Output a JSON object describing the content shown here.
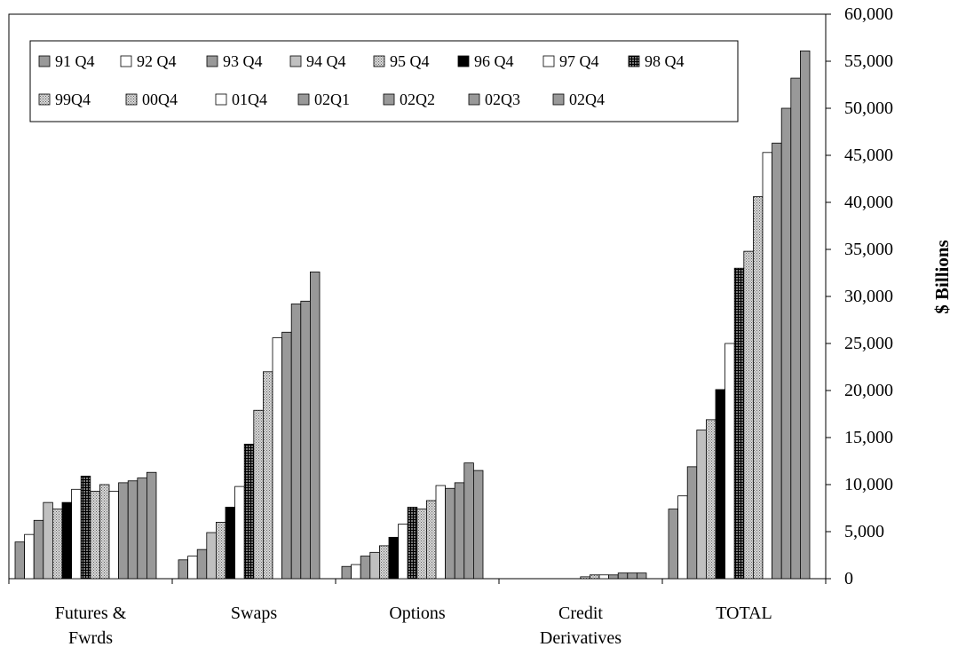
{
  "chart_data": {
    "type": "bar",
    "title": "",
    "xlabel": "",
    "ylabel": "$ Billions",
    "ylim": [
      0,
      60000
    ],
    "yticks": [
      0,
      5000,
      10000,
      15000,
      20000,
      25000,
      30000,
      35000,
      40000,
      45000,
      50000,
      55000,
      60000
    ],
    "ytick_labels": [
      "0",
      "5,000",
      "10,000",
      "15,000",
      "20,000",
      "25,000",
      "30,000",
      "35,000",
      "40,000",
      "45,000",
      "50,000",
      "55,000",
      "60,000"
    ],
    "y_axis_side": "right",
    "grid": false,
    "legend_position": "top-left",
    "categories": [
      [
        "Futures &",
        "Fwrds"
      ],
      [
        "Swaps"
      ],
      [
        "Options"
      ],
      [
        "Credit",
        "Derivatives"
      ],
      [
        "TOTAL"
      ]
    ],
    "series": [
      {
        "name": "91 Q4",
        "fill": "#999999",
        "pattern": "solid",
        "values": [
          3900,
          2000,
          1300,
          0,
          7400
        ]
      },
      {
        "name": "92 Q4",
        "fill": "#ffffff",
        "pattern": "solid",
        "values": [
          4700,
          2400,
          1500,
          0,
          8800
        ]
      },
      {
        "name": "93 Q4",
        "fill": "#999999",
        "pattern": "solid",
        "values": [
          6200,
          3100,
          2400,
          0,
          11900
        ]
      },
      {
        "name": "94 Q4",
        "fill": "#c0c0c0",
        "pattern": "solid",
        "values": [
          8100,
          4900,
          2800,
          0,
          15800
        ]
      },
      {
        "name": "95 Q4",
        "fill": "#c8c8c8",
        "pattern": "dots",
        "values": [
          7400,
          6000,
          3500,
          0,
          16900
        ]
      },
      {
        "name": "96 Q4",
        "fill": "#000000",
        "pattern": "solid",
        "values": [
          8100,
          7600,
          4400,
          0,
          20100
        ]
      },
      {
        "name": "97 Q4",
        "fill": "#ffffff",
        "pattern": "solid",
        "values": [
          9500,
          9800,
          5800,
          0,
          25000
        ]
      },
      {
        "name": "98 Q4",
        "fill": "#777777",
        "pattern": "grid",
        "values": [
          10900,
          14300,
          7600,
          0,
          33000
        ]
      },
      {
        "name": "99Q4",
        "fill": "#e6e6e6",
        "pattern": "dots",
        "values": [
          9300,
          17900,
          7400,
          200,
          34800
        ]
      },
      {
        "name": "00Q4",
        "fill": "#ececec",
        "pattern": "dots",
        "values": [
          10000,
          22000,
          8300,
          400,
          40600
        ]
      },
      {
        "name": "01Q4",
        "fill": "#ffffff",
        "pattern": "solid",
        "values": [
          9300,
          25600,
          9900,
          400,
          45300
        ]
      },
      {
        "name": "02Q1",
        "fill": "#999999",
        "pattern": "solid",
        "values": [
          10200,
          26200,
          9600,
          400,
          46300
        ]
      },
      {
        "name": "02Q2",
        "fill": "#999999",
        "pattern": "solid",
        "values": [
          10400,
          29200,
          10200,
          600,
          50000
        ]
      },
      {
        "name": "02Q3",
        "fill": "#999999",
        "pattern": "solid",
        "values": [
          10700,
          29500,
          12300,
          600,
          53200
        ]
      },
      {
        "name": "02Q4",
        "fill": "#999999",
        "pattern": "solid",
        "values": [
          11300,
          32600,
          11500,
          600,
          56100
        ]
      }
    ]
  }
}
